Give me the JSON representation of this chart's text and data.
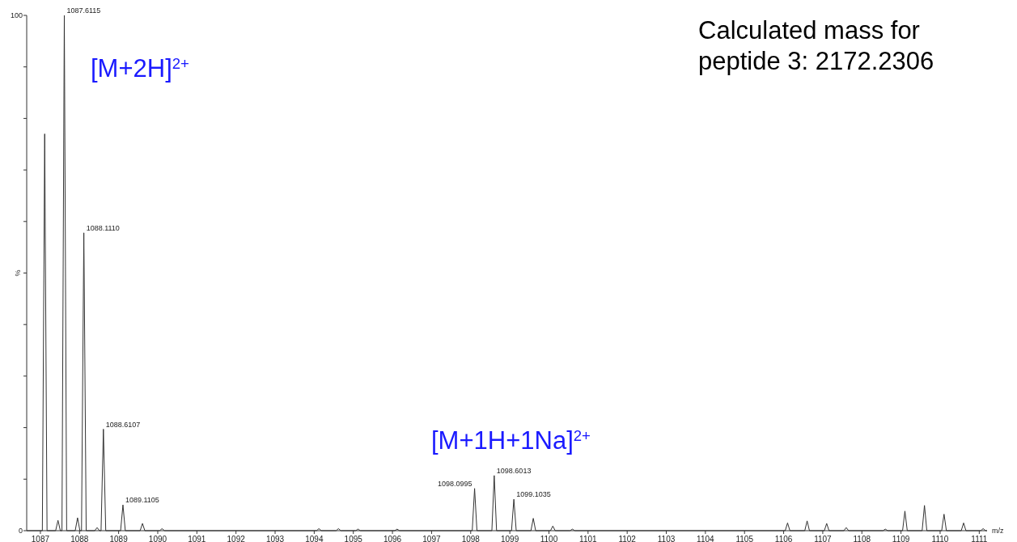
{
  "chart_data": {
    "type": "line",
    "xlabel": "m/z",
    "ylabel": "%",
    "xlim": [
      1086.65,
      1111.2
    ],
    "ylim": [
      0,
      100
    ],
    "xticks": [
      1087,
      1088,
      1089,
      1090,
      1091,
      1092,
      1093,
      1094,
      1095,
      1096,
      1097,
      1098,
      1099,
      1100,
      1101,
      1102,
      1103,
      1104,
      1105,
      1106,
      1107,
      1108,
      1109,
      1110,
      1111
    ],
    "yticks": [
      0,
      {
        "value": 10,
        "label": null
      },
      {
        "value": 20,
        "label": null
      },
      {
        "value": 30,
        "label": null
      },
      {
        "value": 40,
        "label": null
      },
      {
        "value": 50,
        "label": null
      },
      {
        "value": 60,
        "label": null
      },
      {
        "value": 70,
        "label": null
      },
      {
        "value": 80,
        "label": null
      },
      {
        "value": 90,
        "label": null
      },
      100
    ],
    "series": [
      {
        "color": "#333333",
        "x": [
          1086.65,
          1087.05,
          1087.11,
          1087.17,
          1087.39,
          1087.45,
          1087.51,
          1087.5515,
          1087.6115,
          1087.6715,
          1087.89,
          1087.95,
          1088.01,
          1088.051,
          1088.111,
          1088.171,
          1088.39,
          1088.45,
          1088.51,
          1088.5507,
          1088.6107,
          1088.6707,
          1089.0505,
          1089.1105,
          1089.1705,
          1089.55,
          1089.61,
          1089.67,
          1090.05,
          1090.11,
          1090.17,
          1094.06,
          1094.12,
          1094.18,
          1094.56,
          1094.62,
          1094.68,
          1095.06,
          1095.12,
          1095.18,
          1096.06,
          1096.12,
          1096.18,
          1098.0395,
          1098.0995,
          1098.1595,
          1098.5413,
          1098.6013,
          1098.6613,
          1099.0435,
          1099.1035,
          1099.1635,
          1099.54,
          1099.6,
          1099.66,
          1100.04,
          1100.1,
          1100.16,
          1100.54,
          1100.6,
          1100.66,
          1106.04,
          1106.1,
          1106.16,
          1106.54,
          1106.6,
          1106.66,
          1107.04,
          1107.1,
          1107.16,
          1107.54,
          1107.6,
          1107.66,
          1108.54,
          1108.6,
          1108.66,
          1109.04,
          1109.1,
          1109.16,
          1109.54,
          1109.6,
          1109.66,
          1110.04,
          1110.1,
          1110.16,
          1110.54,
          1110.6,
          1110.66,
          1111.04,
          1111.1,
          1111.16,
          1111.2
        ],
        "values": [
          0,
          0,
          77,
          0,
          0,
          2,
          0,
          0,
          100,
          0,
          0,
          2.5,
          0,
          0,
          57.8,
          0,
          0,
          0.6,
          0,
          0,
          19.7,
          0,
          0,
          5,
          0,
          0,
          1.4,
          0,
          0,
          0.4,
          0,
          0,
          0.4,
          0,
          0,
          0.4,
          0,
          0,
          0.3,
          0,
          0,
          0.3,
          0,
          0,
          8.2,
          0,
          0,
          10.7,
          0,
          0,
          6.1,
          0,
          0,
          2.4,
          0,
          0,
          0.9,
          0,
          0,
          0.3,
          0,
          0,
          1.5,
          0,
          0,
          1.9,
          0,
          0,
          1.4,
          0,
          0,
          0.6,
          0,
          0,
          0.3,
          0,
          0,
          3.8,
          0,
          0,
          4.9,
          0,
          0,
          3.2,
          0,
          0,
          1.5,
          0,
          0,
          0.4,
          0,
          0
        ]
      }
    ],
    "annotations": [
      {
        "text": "1087.6115",
        "x": 1087.6115,
        "y": 100
      },
      {
        "text": "1088.1110",
        "x": 1088.111,
        "y": 57.8
      },
      {
        "text": "1088.6107",
        "x": 1088.6107,
        "y": 19.7
      },
      {
        "text": "1089.1105",
        "x": 1089.1105,
        "y": 5
      },
      {
        "text": "1098.0995",
        "x": 1098.0995,
        "y": 8.2
      },
      {
        "text": "1098.6013",
        "x": 1098.6013,
        "y": 10.7
      },
      {
        "text": "1099.1035",
        "x": 1099.1035,
        "y": 6.1
      },
      "[M+2H]$^{2+}$",
      "[M+1H+1Na]$^{2+}$",
      "Calculated mass for",
      "peptide 3: 2172.2306"
    ]
  }
}
